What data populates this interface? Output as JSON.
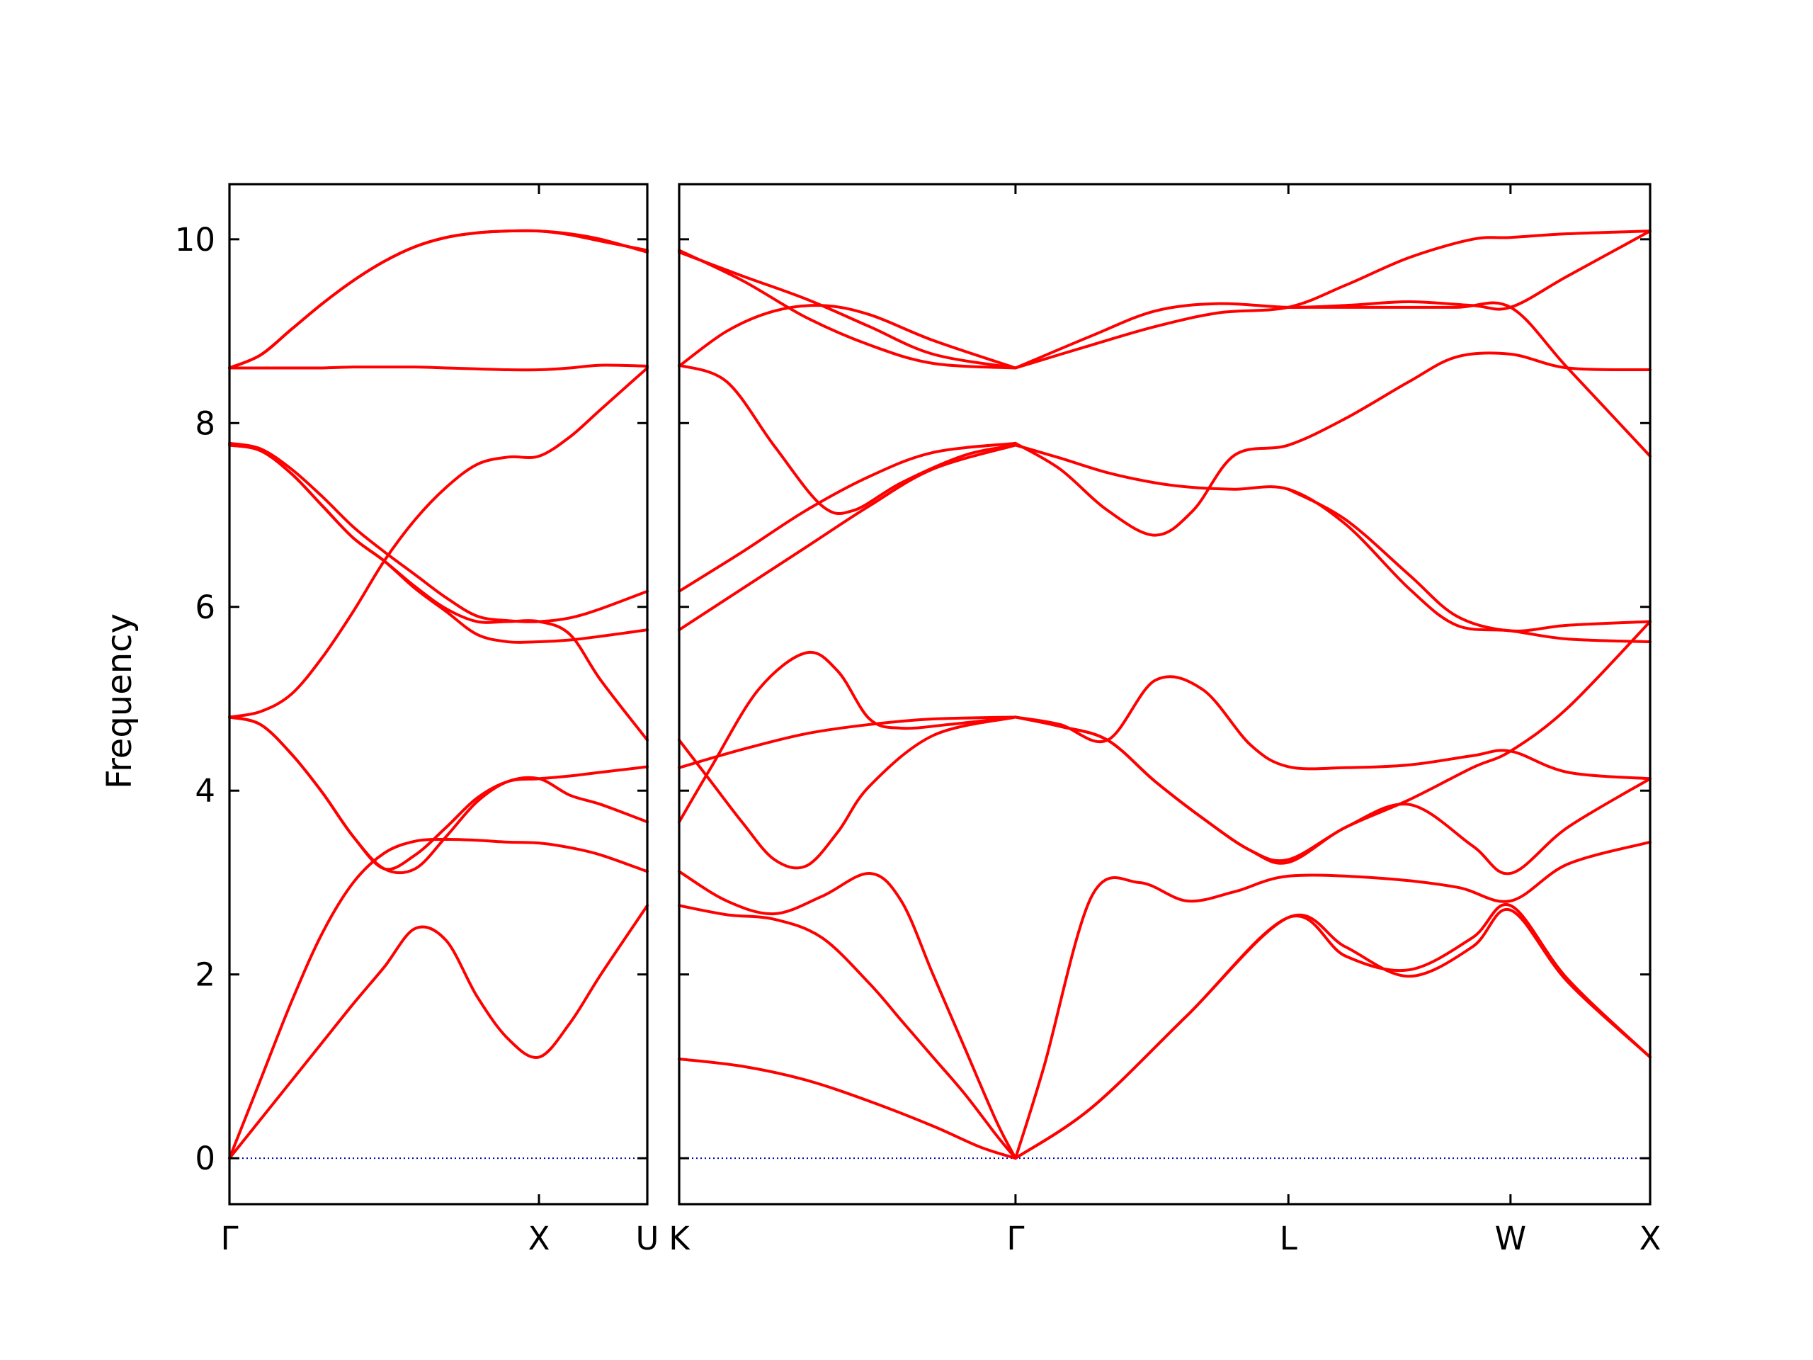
{
  "chart_data": {
    "type": "line",
    "ylabel": "Frequency",
    "ylim": [
      -0.5,
      10.6
    ],
    "yticks": [
      0,
      2,
      4,
      6,
      8,
      10
    ],
    "colors": {
      "bands": "#ff0000",
      "zero_line": "#0000aa",
      "axes": "#000000"
    },
    "grid": false,
    "panels": [
      {
        "name": "left",
        "xlim": [
          0,
          1.35
        ],
        "xticks": [
          {
            "x": 0,
            "label": "Γ"
          },
          {
            "x": 1.0,
            "label": "X"
          },
          {
            "x": 1.35,
            "label": "U"
          }
        ],
        "series": [
          {
            "x": [
              0,
              0.1,
              0.2,
              0.3,
              0.4,
              0.5,
              0.6,
              0.7,
              0.8,
              0.9,
              1.0,
              1.1,
              1.2,
              1.35
            ],
            "y": [
              0,
              0.42,
              0.84,
              1.26,
              1.68,
              2.08,
              2.5,
              2.37,
              1.76,
              1.3,
              1.1,
              1.47,
              2.0,
              2.75
            ]
          },
          {
            "x": [
              0,
              0.1,
              0.2,
              0.3,
              0.4,
              0.5,
              0.6,
              0.7,
              0.8,
              0.9,
              1.0,
              1.1,
              1.2,
              1.35
            ],
            "y": [
              0,
              0.85,
              1.7,
              2.45,
              3.0,
              3.32,
              3.45,
              3.47,
              3.46,
              3.44,
              3.43,
              3.38,
              3.3,
              3.12
            ]
          },
          {
            "x": [
              0,
              0.1,
              0.2,
              0.3,
              0.4,
              0.5,
              0.6,
              0.7,
              0.8,
              0.9,
              1.0,
              1.1,
              1.2,
              1.35
            ],
            "y": [
              4.8,
              4.72,
              4.4,
              3.98,
              3.5,
              3.15,
              3.15,
              3.5,
              3.88,
              4.1,
              4.13,
              3.95,
              3.85,
              3.66
            ]
          },
          {
            "x": [
              0,
              0.1,
              0.2,
              0.3,
              0.4,
              0.5,
              0.6,
              0.7,
              0.8,
              0.9,
              1.0,
              1.1,
              1.2,
              1.35
            ],
            "y": [
              4.8,
              4.72,
              4.4,
              3.98,
              3.5,
              3.15,
              3.3,
              3.6,
              3.92,
              4.1,
              4.13,
              4.16,
              4.2,
              4.26
            ]
          },
          {
            "x": [
              0,
              0.1,
              0.2,
              0.3,
              0.4,
              0.5,
              0.6,
              0.7,
              0.8,
              0.9,
              1.0,
              1.1,
              1.2,
              1.35
            ],
            "y": [
              4.8,
              4.86,
              5.05,
              5.45,
              5.95,
              6.5,
              6.95,
              7.3,
              7.55,
              7.63,
              7.64,
              7.85,
              8.15,
              8.6
            ]
          },
          {
            "x": [
              0,
              0.1,
              0.2,
              0.3,
              0.4,
              0.5,
              0.6,
              0.7,
              0.8,
              0.9,
              1.0,
              1.1,
              1.2,
              1.35
            ],
            "y": [
              7.76,
              7.7,
              7.45,
              7.1,
              6.75,
              6.5,
              6.2,
              5.95,
              5.7,
              5.62,
              5.62,
              5.64,
              5.68,
              5.75
            ]
          },
          {
            "x": [
              0,
              0.1,
              0.2,
              0.3,
              0.4,
              0.5,
              0.6,
              0.7,
              0.8,
              0.9,
              1.0,
              1.1,
              1.2,
              1.35
            ],
            "y": [
              7.78,
              7.72,
              7.5,
              7.2,
              6.87,
              6.6,
              6.35,
              6.1,
              5.9,
              5.85,
              5.84,
              5.88,
              5.98,
              6.17
            ]
          },
          {
            "x": [
              0,
              0.1,
              0.2,
              0.3,
              0.4,
              0.5,
              0.6,
              0.7,
              0.8,
              0.9,
              1.0,
              1.1,
              1.2,
              1.35
            ],
            "y": [
              7.76,
              7.7,
              7.45,
              7.1,
              6.75,
              6.5,
              6.22,
              5.98,
              5.84,
              5.84,
              5.84,
              5.7,
              5.2,
              4.55
            ]
          },
          {
            "x": [
              0,
              0.1,
              0.2,
              0.3,
              0.4,
              0.5,
              0.6,
              0.7,
              0.8,
              0.9,
              1.0,
              1.1,
              1.2,
              1.35
            ],
            "y": [
              8.6,
              8.6,
              8.6,
              8.6,
              8.61,
              8.61,
              8.61,
              8.6,
              8.59,
              8.58,
              8.58,
              8.6,
              8.63,
              8.62
            ]
          },
          {
            "x": [
              0,
              0.1,
              0.2,
              0.3,
              0.4,
              0.5,
              0.6,
              0.7,
              0.8,
              0.9,
              1.0,
              1.1,
              1.2,
              1.35
            ],
            "y": [
              8.6,
              8.74,
              9.02,
              9.3,
              9.55,
              9.76,
              9.92,
              10.02,
              10.07,
              10.09,
              10.09,
              10.06,
              10.0,
              9.86
            ]
          },
          {
            "x": [
              0,
              0.1,
              0.2,
              0.3,
              0.4,
              0.5,
              0.6,
              0.7,
              0.8,
              0.9,
              1.0,
              1.1,
              1.2,
              1.35
            ],
            "y": [
              8.6,
              8.74,
              9.02,
              9.3,
              9.55,
              9.76,
              9.92,
              10.02,
              10.07,
              10.09,
              10.09,
              10.05,
              9.98,
              9.88
            ]
          }
        ],
        "zero_line": {
          "x": [
            0,
            1.35
          ],
          "y": [
            0,
            0
          ]
        }
      },
      {
        "name": "right",
        "xlim": [
          0,
          3.06
        ],
        "xticks": [
          {
            "x": 0,
            "label": "K"
          },
          {
            "x": 1.06,
            "label": "Γ"
          },
          {
            "x": 1.92,
            "label": "L"
          },
          {
            "x": 2.62,
            "label": "W"
          },
          {
            "x": 3.06,
            "label": "X"
          }
        ],
        "series": [
          {
            "x": [
              0,
              0.2,
              0.4,
              0.6,
              0.8,
              0.95,
              1.06
            ],
            "y": [
              1.08,
              1.0,
              0.85,
              0.62,
              0.35,
              0.12,
              0
            ]
          },
          {
            "x": [
              1.06,
              1.3,
              1.6,
              1.92,
              2.1,
              2.3,
              2.5,
              2.62,
              2.8,
              3.06
            ],
            "y": [
              0,
              0.55,
              1.55,
              2.62,
              2.2,
              2.05,
              2.4,
              2.75,
              1.95,
              1.1
            ]
          },
          {
            "x": [
              1.06,
              1.3,
              1.6,
              1.92,
              2.1,
              2.3,
              2.5,
              2.62,
              2.8,
              3.06
            ],
            "y": [
              0,
              0.55,
              1.55,
              2.62,
              2.3,
              1.98,
              2.3,
              2.7,
              1.92,
              1.1
            ]
          },
          {
            "x": [
              0,
              0.15,
              0.3,
              0.45,
              0.6,
              0.7,
              0.8,
              0.9,
              1.0,
              1.06
            ],
            "y": [
              2.75,
              2.65,
              2.6,
              2.4,
              1.9,
              1.5,
              1.1,
              0.7,
              0.25,
              0
            ]
          },
          {
            "x": [
              0,
              0.15,
              0.3,
              0.45,
              0.6,
              0.7,
              0.8,
              0.9,
              1.0,
              1.06
            ],
            "y": [
              3.12,
              2.8,
              2.66,
              2.85,
              3.1,
              2.8,
              2.0,
              1.2,
              0.4,
              0
            ]
          },
          {
            "x": [
              1.06,
              1.15,
              1.3,
              1.45,
              1.6,
              1.75,
              1.92,
              2.2,
              2.45,
              2.62,
              2.8,
              3.06
            ],
            "y": [
              0,
              1.0,
              2.85,
              3.0,
              2.8,
              2.9,
              3.07,
              3.05,
              2.95,
              2.8,
              3.2,
              3.44
            ]
          },
          {
            "x": [
              0,
              0.1,
              0.2,
              0.3,
              0.4,
              0.5,
              0.6,
              0.8,
              1.06
            ],
            "y": [
              4.55,
              4.1,
              3.65,
              3.25,
              3.18,
              3.55,
              4.05,
              4.6,
              4.8
            ]
          },
          {
            "x": [
              0,
              0.1,
              0.25,
              0.4,
              0.5,
              0.6,
              0.7,
              0.85,
              1.06
            ],
            "y": [
              3.66,
              4.25,
              5.1,
              5.5,
              5.3,
              4.78,
              4.68,
              4.72,
              4.8
            ]
          },
          {
            "x": [
              0,
              0.2,
              0.4,
              0.6,
              0.8,
              1.06
            ],
            "y": [
              4.25,
              4.45,
              4.62,
              4.72,
              4.78,
              4.8
            ]
          },
          {
            "x": [
              1.06,
              1.2,
              1.35,
              1.5,
              1.65,
              1.8,
              1.92,
              2.1,
              2.3,
              2.5,
              2.62,
              2.8,
              3.06
            ],
            "y": [
              4.8,
              4.72,
              4.55,
              5.2,
              5.1,
              4.5,
              4.26,
              4.25,
              4.28,
              4.38,
              4.43,
              4.2,
              4.13
            ]
          },
          {
            "x": [
              1.06,
              1.2,
              1.35,
              1.5,
              1.65,
              1.8,
              1.92,
              2.1,
              2.3,
              2.5,
              2.62,
              2.8,
              3.06
            ],
            "y": [
              4.8,
              4.7,
              4.55,
              4.1,
              3.7,
              3.35,
              3.25,
              3.6,
              3.9,
              4.25,
              4.43,
              4.9,
              5.84
            ]
          },
          {
            "x": [
              1.06,
              1.2,
              1.35,
              1.5,
              1.65,
              1.8,
              1.92,
              2.1,
              2.3,
              2.5,
              2.62,
              2.8,
              3.06
            ],
            "y": [
              4.8,
              4.7,
              4.55,
              4.1,
              3.7,
              3.35,
              3.22,
              3.6,
              3.85,
              3.4,
              3.1,
              3.6,
              4.13
            ]
          },
          {
            "x": [
              0,
              0.2,
              0.4,
              0.6,
              0.8,
              1.06
            ],
            "y": [
              5.75,
              6.2,
              6.65,
              7.1,
              7.5,
              7.76
            ]
          },
          {
            "x": [
              0,
              0.15,
              0.3,
              0.45,
              0.55,
              0.7,
              0.9,
              1.06
            ],
            "y": [
              8.63,
              8.45,
              7.75,
              7.1,
              7.05,
              7.35,
              7.65,
              7.76
            ]
          },
          {
            "x": [
              0,
              0.2,
              0.4,
              0.6,
              0.8,
              1.06
            ],
            "y": [
              6.17,
              6.6,
              7.05,
              7.42,
              7.68,
              7.78
            ]
          },
          {
            "x": [
              1.06,
              1.2,
              1.35,
              1.5,
              1.62,
              1.75,
              1.92,
              2.1,
              2.3,
              2.45,
              2.62,
              2.8,
              3.06
            ],
            "y": [
              7.76,
              7.62,
              7.46,
              7.35,
              7.3,
              7.28,
              7.28,
              6.9,
              6.2,
              5.8,
              5.74,
              5.65,
              5.62
            ]
          },
          {
            "x": [
              1.06,
              1.2,
              1.35,
              1.5,
              1.62,
              1.75,
              1.92,
              2.1,
              2.3,
              2.45,
              2.62,
              2.8,
              3.06
            ],
            "y": [
              7.78,
              7.5,
              7.05,
              6.78,
              7.05,
              7.65,
              7.76,
              8.05,
              8.45,
              8.72,
              8.75,
              8.6,
              8.58
            ]
          },
          {
            "x": [
              1.92,
              2.1,
              2.3,
              2.45,
              2.62,
              2.8,
              3.06
            ],
            "y": [
              7.28,
              6.95,
              6.35,
              5.9,
              5.74,
              5.8,
              5.84
            ]
          },
          {
            "x": [
              0,
              0.2,
              0.4,
              0.6,
              0.8,
              1.06
            ],
            "y": [
              9.86,
              9.6,
              9.35,
              9.05,
              8.75,
              8.6
            ]
          },
          {
            "x": [
              0,
              0.2,
              0.4,
              0.6,
              0.8,
              1.06
            ],
            "y": [
              9.88,
              9.55,
              9.15,
              8.85,
              8.65,
              8.6
            ]
          },
          {
            "x": [
              0,
              0.15,
              0.3,
              0.45,
              0.6,
              0.8,
              1.06
            ],
            "y": [
              8.62,
              9.0,
              9.22,
              9.28,
              9.18,
              8.9,
              8.6
            ]
          },
          {
            "x": [
              1.06,
              1.3,
              1.5,
              1.7,
              1.92,
              2.1,
              2.3,
              2.5,
              2.62,
              2.8,
              3.06
            ],
            "y": [
              8.6,
              8.95,
              9.22,
              9.3,
              9.26,
              9.28,
              9.32,
              9.28,
              9.26,
              9.6,
              10.09
            ]
          },
          {
            "x": [
              1.06,
              1.3,
              1.5,
              1.7,
              1.92,
              2.1,
              2.3,
              2.5,
              2.62,
              2.8,
              3.06
            ],
            "y": [
              8.6,
              8.85,
              9.05,
              9.2,
              9.26,
              9.5,
              9.8,
              10.0,
              10.02,
              10.06,
              10.09
            ]
          },
          {
            "x": [
              1.92,
              2.2,
              2.45,
              2.62,
              2.8,
              3.06
            ],
            "y": [
              9.26,
              9.26,
              9.26,
              9.26,
              8.6,
              7.64
            ]
          }
        ],
        "zero_line": {
          "x": [
            0,
            3.06
          ],
          "y": [
            0,
            0
          ]
        }
      }
    ]
  }
}
